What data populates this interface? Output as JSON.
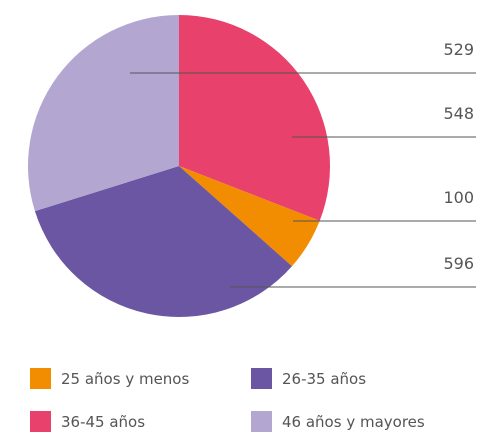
{
  "chart_data": {
    "type": "pie",
    "categories": [
      "36-45 años",
      "25 años y menos",
      "26-35 años",
      "46 años y mayores"
    ],
    "values": [
      548,
      100,
      596,
      529
    ],
    "colors": [
      "#e8416c",
      "#f28c00",
      "#6a56a3",
      "#b3a7d2"
    ],
    "legend": "bottom"
  }
}
